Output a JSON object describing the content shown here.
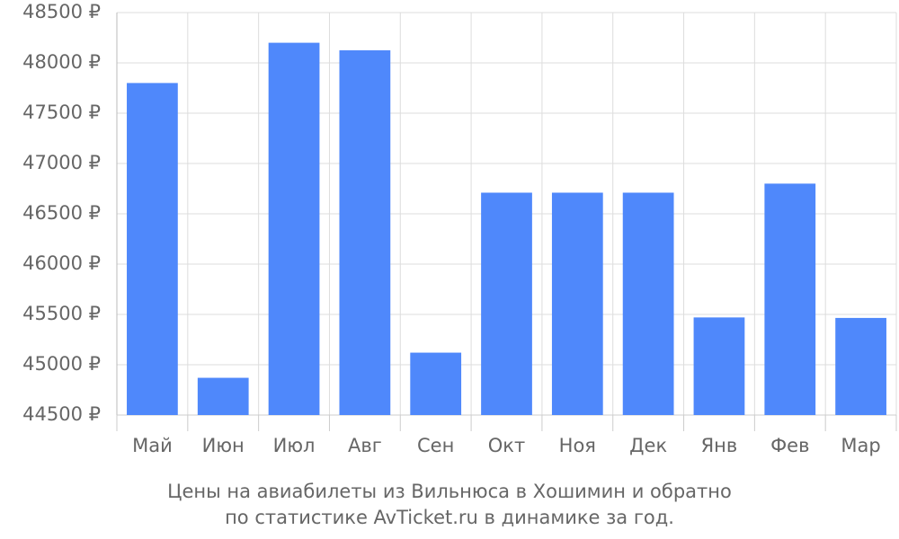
{
  "chart_data": {
    "type": "bar",
    "title": "Цены на авиабилеты из Вильнюса в Хошимин и обратно",
    "subtitle": "по статистике AvTicket.ru в динамике за год.",
    "categories": [
      "Май",
      "Июн",
      "Июл",
      "Авг",
      "Сен",
      "Окт",
      "Ноя",
      "Дек",
      "Янв",
      "Фев",
      "Мар"
    ],
    "values": [
      47800,
      44870,
      48200,
      48125,
      45120,
      46710,
      46710,
      46710,
      45470,
      46800,
      45465
    ],
    "color": "#4f88fb",
    "ylim": [
      44500,
      48500
    ],
    "yticks": [
      {
        "value": 44500,
        "label": "44500 ₽"
      },
      {
        "value": 45000,
        "label": "45000 ₽"
      },
      {
        "value": 45500,
        "label": "45500 ₽"
      },
      {
        "value": 46000,
        "label": "46000 ₽"
      },
      {
        "value": 46500,
        "label": "46500 ₽"
      },
      {
        "value": 47000,
        "label": "47000 ₽"
      },
      {
        "value": 47500,
        "label": "47500 ₽"
      },
      {
        "value": 48000,
        "label": "48000 ₽"
      },
      {
        "value": 48500,
        "label": "48500 ₽"
      }
    ],
    "grid": true
  }
}
